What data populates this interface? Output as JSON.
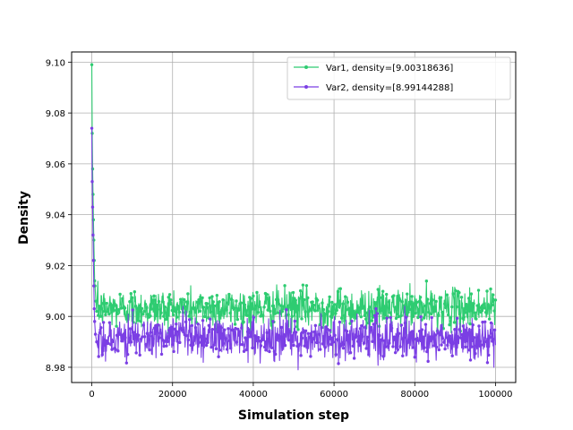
{
  "chart_data": {
    "type": "line",
    "title": "",
    "xlabel": "Simulation step",
    "ylabel": "Density",
    "xlim": [
      -5000,
      105000
    ],
    "ylim": [
      8.974,
      9.104
    ],
    "xticks": [
      0,
      20000,
      40000,
      60000,
      80000,
      100000
    ],
    "yticks": [
      8.98,
      9.0,
      9.02,
      9.04,
      9.06,
      9.08,
      9.1
    ],
    "xtick_labels": [
      "0",
      "20000",
      "40000",
      "60000",
      "80000",
      "100000"
    ],
    "ytick_labels": [
      "8.98",
      "9.00",
      "9.02",
      "9.04",
      "9.06",
      "9.08",
      "9.10"
    ],
    "grid": true,
    "legend": "top-right",
    "series": [
      {
        "name": "Var1, density=[9.00318636]",
        "color": "#2ecc71",
        "transient": [
          [
            0,
            9.099
          ],
          [
            100,
            9.072
          ],
          [
            200,
            9.058
          ],
          [
            300,
            9.048
          ],
          [
            400,
            9.038
          ],
          [
            500,
            9.03
          ],
          [
            600,
            9.022
          ],
          [
            700,
            9.014
          ],
          [
            800,
            9.012
          ],
          [
            1000,
            9.006
          ],
          [
            1200,
            9.002
          ]
        ],
        "steady": {
          "x_start": 1500,
          "x_end": 100000,
          "step": 100,
          "mean": 9.00318636,
          "range": [
            8.992,
            9.015
          ]
        }
      },
      {
        "name": "Var2, density=[8.99144288]",
        "color": "#7b3fe4",
        "transient": [
          [
            0,
            9.074
          ],
          [
            100,
            9.053
          ],
          [
            200,
            9.043
          ],
          [
            300,
            9.032
          ],
          [
            400,
            9.022
          ],
          [
            500,
            9.012
          ],
          [
            600,
            9.003
          ],
          [
            700,
            8.998
          ],
          [
            900,
            8.993
          ],
          [
            1200,
            8.99
          ]
        ],
        "steady": {
          "x_start": 1500,
          "x_end": 100000,
          "step": 100,
          "mean": 8.99144288,
          "range": [
            8.979,
            9.004
          ]
        }
      }
    ]
  }
}
